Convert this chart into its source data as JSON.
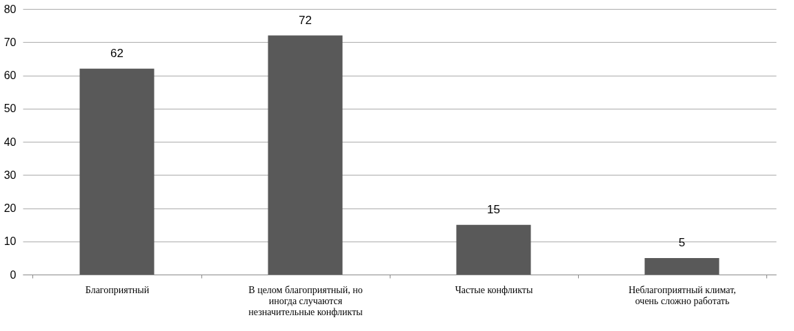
{
  "chart_data": {
    "type": "bar",
    "categories": [
      "Благоприятный",
      "В целом благоприятный, но иногда случаются незначительные конфликты",
      "Частые конфликты",
      "Неблагоприятный климат, очень сложно работать"
    ],
    "values": [
      62,
      72,
      15,
      5
    ],
    "color": "#595959",
    "ylim": [
      0,
      80
    ],
    "yticks": [
      0,
      10,
      20,
      30,
      40,
      50,
      60,
      70,
      80
    ],
    "grid": "y",
    "data_labels": true
  }
}
